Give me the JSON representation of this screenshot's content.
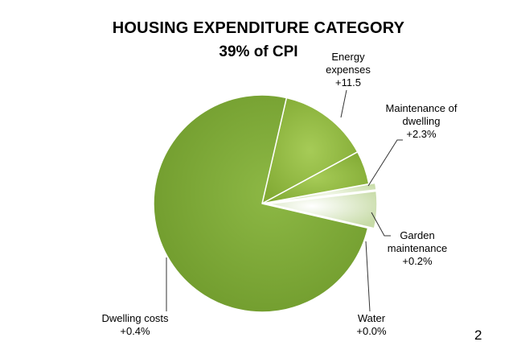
{
  "page": {
    "number": "2"
  },
  "chart_data": {
    "type": "pie",
    "title": "HOUSING EXPENDITURE CATEGORY",
    "subtitle": "39% of CPI",
    "slices": [
      {
        "id": "energy",
        "label": "Energy expenses",
        "label_lines": [
          "Energy",
          "expenses",
          "+11.5"
        ],
        "change": "+11.5",
        "share": 13.5,
        "color": "#8fb53f",
        "exploded": false
      },
      {
        "id": "maintenance",
        "label": "Maintenance of dwelling",
        "label_lines": [
          "Maintenance of",
          "dwelling",
          "+2.3%"
        ],
        "change": "+2.3%",
        "share": 5.0,
        "color": "#8fb53f",
        "exploded": false
      },
      {
        "id": "garden",
        "label": "Garden maintenance",
        "label_lines": [
          "Garden",
          "maintenance",
          "+0.2%"
        ],
        "change": "+0.2%",
        "share": 1.0,
        "color": "#ddebc3",
        "exploded": true
      },
      {
        "id": "water",
        "label": "Water",
        "label_lines": [
          "Water",
          "+0.0%"
        ],
        "change": "+0.0%",
        "share": 5.5,
        "color": "#e9f1dc",
        "exploded": true
      },
      {
        "id": "dwelling",
        "label": "Dwelling costs",
        "label_lines": [
          "Dwelling costs",
          "+0.4%"
        ],
        "change": "+0.4%",
        "share": 75.0,
        "color": "#7fa534",
        "exploded": false
      }
    ]
  }
}
